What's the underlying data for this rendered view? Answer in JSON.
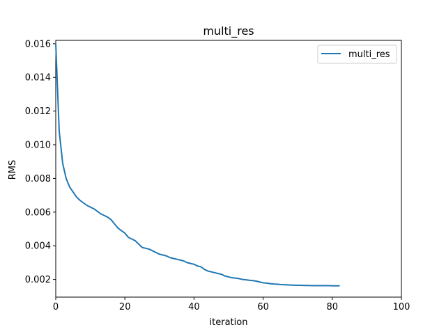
{
  "chart_data": {
    "type": "line",
    "title": "multi_res",
    "xlabel": "iteration",
    "ylabel": "RMS",
    "xlim": [
      0,
      100
    ],
    "ylim": [
      0.00095,
      0.0162
    ],
    "xticks": [
      0,
      20,
      40,
      60,
      80,
      100
    ],
    "xtick_labels": [
      "0",
      "20",
      "40",
      "60",
      "80",
      "100"
    ],
    "yticks": [
      0.002,
      0.004,
      0.006,
      0.008,
      0.01,
      0.012,
      0.014,
      0.016
    ],
    "ytick_labels": [
      "0.002",
      "0.004",
      "0.006",
      "0.008",
      "0.010",
      "0.012",
      "0.014",
      "0.016"
    ],
    "grid": false,
    "legend": "top-right",
    "series": [
      {
        "name": "multi_res",
        "color": "#1f77b4",
        "x": [
          0,
          1,
          2,
          3,
          4,
          5,
          6,
          7,
          8,
          9,
          10,
          11,
          12,
          13,
          14,
          15,
          16,
          17,
          18,
          19,
          20,
          21,
          22,
          23,
          24,
          25,
          26,
          27,
          28,
          29,
          30,
          31,
          32,
          33,
          34,
          35,
          36,
          37,
          38,
          39,
          40,
          41,
          42,
          43,
          44,
          45,
          46,
          47,
          48,
          49,
          50,
          51,
          52,
          53,
          54,
          55,
          56,
          57,
          58,
          59,
          60,
          61,
          62,
          63,
          64,
          65,
          66,
          67,
          68,
          69,
          70,
          71,
          72,
          73,
          74,
          75,
          76,
          77,
          78,
          79,
          80,
          81,
          82
        ],
        "y": [
          0.016,
          0.0108,
          0.0089,
          0.008,
          0.0075,
          0.0072,
          0.0069,
          0.0067,
          0.00655,
          0.0064,
          0.0063,
          0.0062,
          0.00605,
          0.0059,
          0.0058,
          0.0057,
          0.00555,
          0.0053,
          0.00505,
          0.0049,
          0.00475,
          0.0045,
          0.0044,
          0.0043,
          0.0041,
          0.0039,
          0.00385,
          0.0038,
          0.0037,
          0.0036,
          0.0035,
          0.00345,
          0.0034,
          0.0033,
          0.00325,
          0.0032,
          0.00315,
          0.0031,
          0.003,
          0.00295,
          0.0029,
          0.0028,
          0.00275,
          0.0026,
          0.0025,
          0.00245,
          0.0024,
          0.00235,
          0.0023,
          0.0022,
          0.00215,
          0.0021,
          0.00208,
          0.00205,
          0.002,
          0.00198,
          0.00195,
          0.00193,
          0.0019,
          0.00185,
          0.0018,
          0.00178,
          0.00175,
          0.00173,
          0.00172,
          0.0017,
          0.00169,
          0.00168,
          0.00167,
          0.00166,
          0.00165,
          0.00165,
          0.00164,
          0.00164,
          0.00163,
          0.00163,
          0.00163,
          0.00163,
          0.00163,
          0.00163,
          0.00162,
          0.00162,
          0.00162
        ]
      }
    ]
  }
}
